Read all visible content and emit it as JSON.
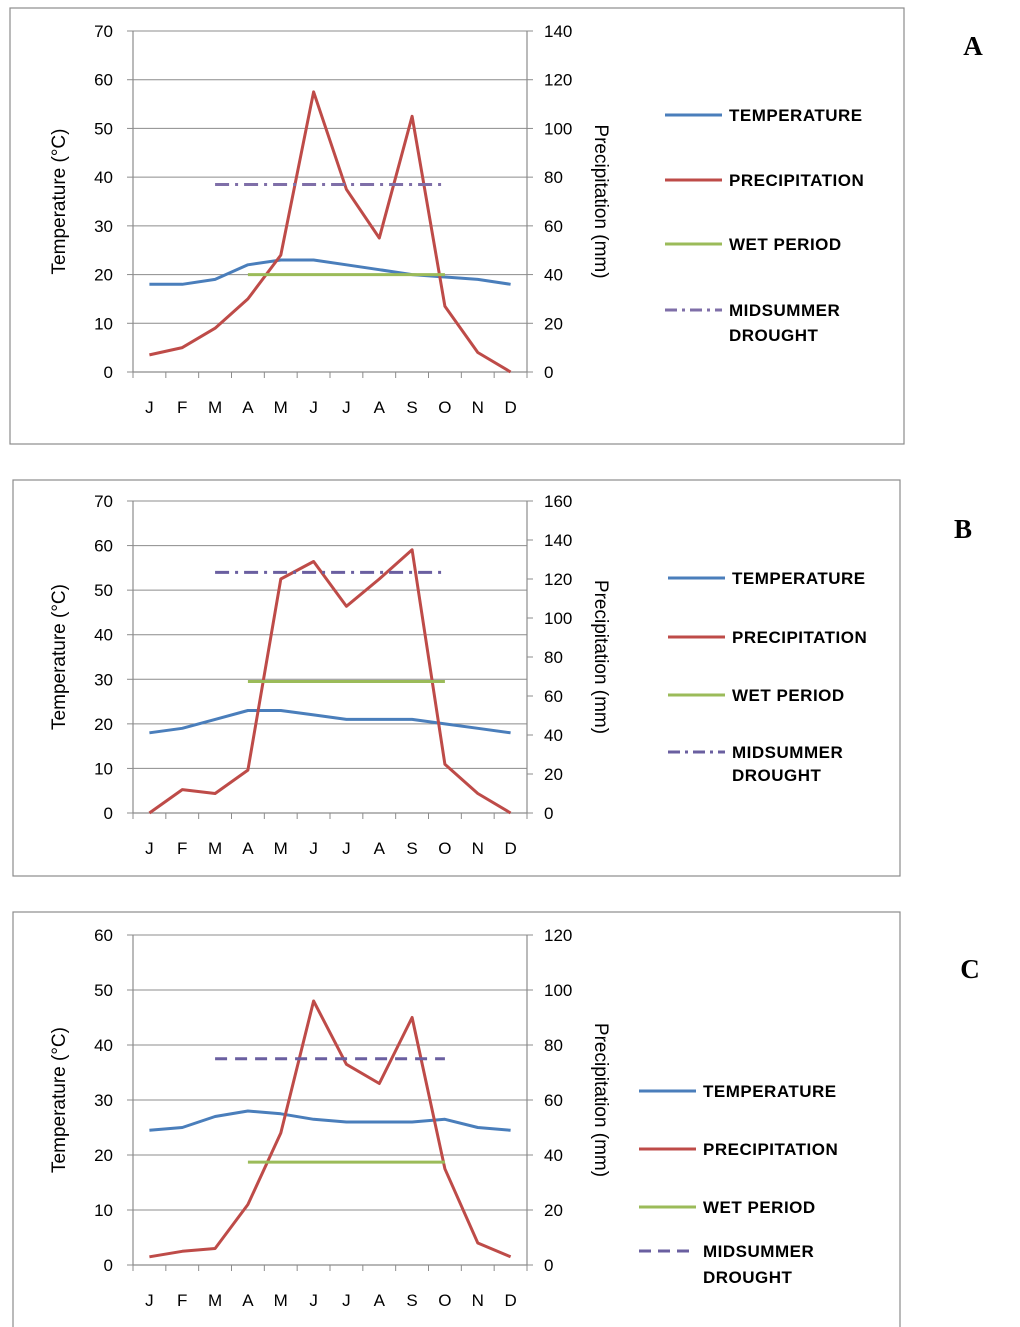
{
  "chart_data": [
    {
      "panel_label": "A",
      "type": "line",
      "categories": [
        "J",
        "F",
        "M",
        "A",
        "M",
        "J",
        "J",
        "A",
        "S",
        "O",
        "N",
        "D"
      ],
      "ylabel": "Temperature (°C)",
      "ylabel_right": "Precipitation (mm)",
      "ylim": [
        0,
        70
      ],
      "yticks": [
        "0",
        "10",
        "20",
        "30",
        "40",
        "50",
        "60",
        "70"
      ],
      "ylim_right": [
        0,
        140
      ],
      "yticks_right": [
        "0",
        "20",
        "40",
        "60",
        "80",
        "100",
        "120",
        "140"
      ],
      "grid": true,
      "legend_position": "right",
      "series": [
        {
          "name": "TEMPERATURE",
          "axis": "left",
          "color": "#4a7ebb",
          "values": [
            18,
            18,
            19,
            22,
            23,
            23,
            22,
            21,
            20,
            19.5,
            19,
            18
          ]
        },
        {
          "name": "PRECIPITATION",
          "axis": "right",
          "color": "#be4b48",
          "values": [
            7,
            10,
            18,
            30,
            48,
            115,
            75,
            55,
            105,
            27,
            8,
            0
          ]
        },
        {
          "name": "WET PERIOD",
          "axis": "left",
          "color": "#9bbb59",
          "style": "solid",
          "x_range": [
            "A",
            "O"
          ],
          "value": 20
        },
        {
          "name": "MIDSUMMER DROUGHT",
          "axis": "left",
          "color": "#7f6fa8",
          "style": "dashdot",
          "x_range": [
            "M",
            "O"
          ],
          "value": 38.5
        }
      ]
    },
    {
      "panel_label": "B",
      "type": "line",
      "categories": [
        "J",
        "F",
        "M",
        "A",
        "M",
        "J",
        "J",
        "A",
        "S",
        "O",
        "N",
        "D"
      ],
      "ylabel": "Temperature (°C)",
      "ylabel_right": "Precipitation (mm)",
      "ylim": [
        0,
        70
      ],
      "yticks": [
        "0",
        "10",
        "20",
        "30",
        "40",
        "50",
        "60",
        "70"
      ],
      "ylim_right": [
        0,
        160
      ],
      "yticks_right": [
        "0",
        "20",
        "40",
        "60",
        "80",
        "100",
        "120",
        "140",
        "160"
      ],
      "grid": true,
      "legend_position": "right",
      "series": [
        {
          "name": "TEMPERATURE",
          "axis": "left",
          "color": "#4a7ebb",
          "values": [
            18,
            19,
            21,
            23,
            23,
            22,
            21,
            21,
            21,
            20,
            19,
            18
          ]
        },
        {
          "name": "PRECIPITATION",
          "axis": "right",
          "color": "#be4b48",
          "values": [
            0,
            12,
            10,
            22,
            120,
            129,
            106,
            120,
            135,
            25,
            10,
            0
          ]
        },
        {
          "name": "WET PERIOD",
          "axis": "left",
          "color": "#9bbb59",
          "style": "solid",
          "x_range": [
            "A",
            "O"
          ],
          "value": 29.5
        },
        {
          "name": "MIDSUMMER DROUGHT",
          "axis": "left",
          "color": "#6a5fa0",
          "style": "dashdot",
          "x_range": [
            "M",
            "O"
          ],
          "value": 54
        }
      ]
    },
    {
      "panel_label": "C",
      "type": "line",
      "categories": [
        "J",
        "F",
        "M",
        "A",
        "M",
        "J",
        "J",
        "A",
        "S",
        "O",
        "N",
        "D"
      ],
      "ylabel": "Temperature (°C)",
      "ylabel_right": "Precipitation (mm)",
      "ylim": [
        0,
        60
      ],
      "yticks": [
        "0",
        "10",
        "20",
        "30",
        "40",
        "50",
        "60"
      ],
      "ylim_right": [
        0,
        120
      ],
      "yticks_right": [
        "0",
        "20",
        "40",
        "60",
        "80",
        "100",
        "120"
      ],
      "grid": true,
      "legend_position": "right",
      "series": [
        {
          "name": "TEMPERATURE",
          "axis": "left",
          "color": "#4a7ebb",
          "values": [
            24.5,
            25,
            27,
            28,
            27.5,
            26.5,
            26,
            26,
            26,
            26.5,
            25,
            24.5
          ]
        },
        {
          "name": "PRECIPITATION",
          "axis": "right",
          "color": "#be4b48",
          "values": [
            3,
            5,
            6,
            22,
            48,
            96,
            73,
            66,
            90,
            35,
            8,
            3
          ]
        },
        {
          "name": "WET PERIOD",
          "axis": "left",
          "color": "#9bbb59",
          "style": "solid",
          "x_range": [
            "A",
            "O"
          ],
          "value": 18.7
        },
        {
          "name": "MIDSUMMER DROUGHT",
          "axis": "left",
          "color": "#6a5fa0",
          "style": "dashed",
          "x_range": [
            "M",
            "O"
          ],
          "value": 37.5
        }
      ]
    }
  ],
  "legend_labels": {
    "temperature": "TEMPERATURE",
    "precipitation": "PRECIPITATION",
    "wet_period": "WET PERIOD",
    "midsummer_line1": "MIDSUMMER",
    "midsummer_line2": "DROUGHT"
  }
}
